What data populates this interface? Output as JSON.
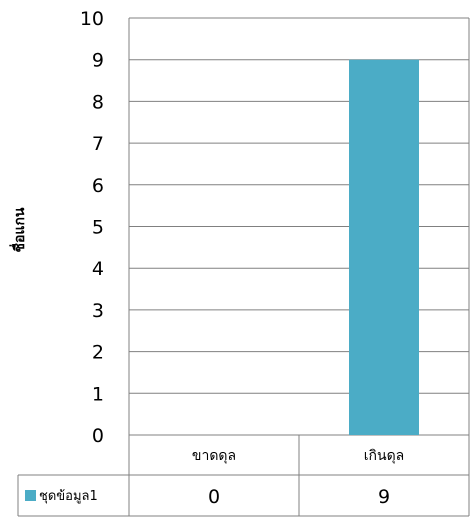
{
  "colors": {
    "bar": "#4BACC6",
    "grid": "#808080",
    "axis": "#808080",
    "table_border": "#808080"
  },
  "chart_data": {
    "type": "bar",
    "categories": [
      "ขาดดุล",
      "เกินดุล"
    ],
    "series": [
      {
        "name": "ชุดข้อมูล1",
        "values": [
          0,
          9
        ]
      }
    ],
    "ylabel": "ชื่อแกน",
    "ylim": [
      0,
      10
    ],
    "yticks": [
      0,
      1,
      2,
      3,
      4,
      5,
      6,
      7,
      8,
      9,
      10
    ],
    "grid": true,
    "legend": "data-table-left",
    "data_table": true
  }
}
